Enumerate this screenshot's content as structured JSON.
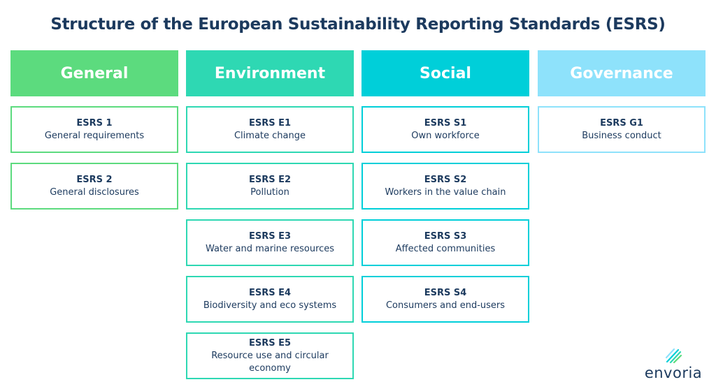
{
  "title": "Structure of the European Sustainability Reporting Standards (ESRS)",
  "colors": {
    "general": "#5cdb7e",
    "environment": "#2ed8b3",
    "social": "#00cfd9",
    "governance": "#8ee2fb"
  },
  "columns": [
    {
      "header": "General",
      "items": [
        {
          "code": "ESRS 1",
          "name": "General requirements"
        },
        {
          "code": "ESRS 2",
          "name": "General disclosures"
        }
      ]
    },
    {
      "header": "Environment",
      "items": [
        {
          "code": "ESRS E1",
          "name": "Climate change"
        },
        {
          "code": "ESRS E2",
          "name": "Pollution"
        },
        {
          "code": "ESRS E3",
          "name": "Water and marine resources"
        },
        {
          "code": "ESRS E4",
          "name": "Biodiversity and eco systems"
        },
        {
          "code": "ESRS E5",
          "name": "Resource use and circular economy"
        }
      ]
    },
    {
      "header": "Social",
      "items": [
        {
          "code": "ESRS S1",
          "name": "Own workforce"
        },
        {
          "code": "ESRS S2",
          "name": "Workers in the value chain"
        },
        {
          "code": "ESRS S3",
          "name": "Affected communities"
        },
        {
          "code": "ESRS S4",
          "name": "Consumers and end-users"
        }
      ]
    },
    {
      "header": "Governance",
      "items": [
        {
          "code": "ESRS G1",
          "name": "Business conduct"
        }
      ]
    }
  ],
  "logo": {
    "text": "envoria",
    "icon": "envoria-logo-icon"
  }
}
